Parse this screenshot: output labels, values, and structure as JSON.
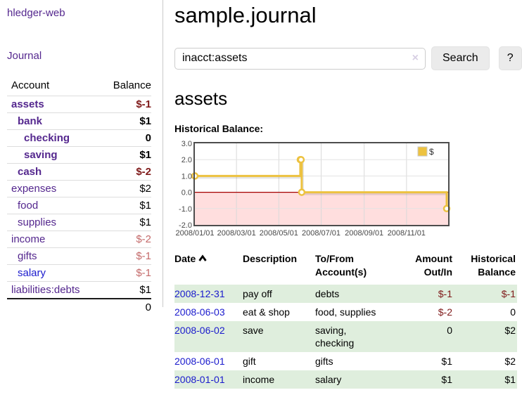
{
  "colors": {
    "accent_purple": "#54278e",
    "link_blue": "#1a1acd",
    "negative_dark": "#7f1a1a",
    "negative_soft": "#c46a6a",
    "row_stripe_green": "#dfeedd",
    "chart_line": "#edc240",
    "chart_negative_region": "#ffdede",
    "chart_zero_line": "#a40000"
  },
  "sidebar": {
    "app_title": "hledger-web",
    "journal_label": "Journal",
    "table": {
      "account_header": "Account",
      "balance_header": "Balance",
      "accounts": [
        {
          "name": "assets",
          "level": 0,
          "bold": true,
          "name_color": "purple",
          "balance": "$-1",
          "balance_color": "dark-red"
        },
        {
          "name": "bank",
          "level": 1,
          "bold": true,
          "name_color": "purple",
          "balance": "$1",
          "balance_color": ""
        },
        {
          "name": "checking",
          "level": 2,
          "bold": true,
          "name_color": "purple",
          "balance": "0",
          "balance_color": ""
        },
        {
          "name": "saving",
          "level": 2,
          "bold": true,
          "name_color": "purple",
          "balance": "$1",
          "balance_color": ""
        },
        {
          "name": "cash",
          "level": 1,
          "bold": true,
          "name_color": "purple",
          "balance": "$-2",
          "balance_color": "dark-red"
        },
        {
          "name": "expenses",
          "level": 0,
          "bold": false,
          "name_color": "purple",
          "balance": "$2",
          "balance_color": ""
        },
        {
          "name": "food",
          "level": 1,
          "bold": false,
          "name_color": "purple",
          "balance": "$1",
          "balance_color": ""
        },
        {
          "name": "supplies",
          "level": 1,
          "bold": false,
          "name_color": "purple",
          "balance": "$1",
          "balance_color": ""
        },
        {
          "name": "income",
          "level": 0,
          "bold": false,
          "name_color": "purple",
          "balance": "$-2",
          "balance_color": "soft-red"
        },
        {
          "name": "gifts",
          "level": 1,
          "bold": false,
          "name_color": "purple",
          "balance": "$-1",
          "balance_color": "soft-red"
        },
        {
          "name": "salary",
          "level": 1,
          "bold": false,
          "name_color": "blue",
          "balance": "$-1",
          "balance_color": "soft-red"
        },
        {
          "name": "liabilities:debts",
          "level": 0,
          "bold": false,
          "name_color": "purple",
          "balance": "$1",
          "balance_color": ""
        }
      ],
      "total": "0"
    }
  },
  "header": {
    "title": "sample.journal"
  },
  "search": {
    "value": "inacct:assets",
    "clear_icon": "×",
    "button_label": "Search",
    "help_label": "?"
  },
  "account_page": {
    "heading": "assets",
    "chart_label": "Historical Balance:"
  },
  "chart_data": {
    "type": "line",
    "step": true,
    "title": "Historical Balance",
    "x_start": "2008-01-01",
    "x_total_days": 365,
    "xticks": [
      "2008/01/01",
      "2008/03/01",
      "2008/05/01",
      "2008/07/01",
      "2008/09/01",
      "2008/11/01"
    ],
    "yticks": [
      3.0,
      2.0,
      1.0,
      0.0,
      -1.0,
      -2.0
    ],
    "ylim": [
      -2,
      3
    ],
    "series": [
      {
        "name": "$",
        "color": "#edc240",
        "points": [
          [
            "2008-01-01",
            1
          ],
          [
            "2008-06-01",
            2
          ],
          [
            "2008-06-02",
            2
          ],
          [
            "2008-06-03",
            0
          ],
          [
            "2008-12-31",
            -1
          ]
        ]
      }
    ],
    "legend_position": "top-right",
    "grid": true,
    "negative_region_color": "#ffdede",
    "zero_line_color": "#a40000"
  },
  "register": {
    "headers": {
      "date": "Date",
      "description": "Description",
      "accounts": "To/From Account(s)",
      "amount": "Amount Out/In",
      "balance": "Historical Balance"
    },
    "sort": {
      "column": "date",
      "direction": "ascending"
    },
    "rows": [
      {
        "date": "2008-12-31",
        "description": "pay off",
        "accounts": "debts",
        "amount": "$-1",
        "amount_negative": true,
        "balance": "$-1",
        "balance_negative": true
      },
      {
        "date": "2008-06-03",
        "description": "eat & shop",
        "accounts": "food, supplies",
        "amount": "$-2",
        "amount_negative": true,
        "balance": "0",
        "balance_negative": false
      },
      {
        "date": "2008-06-02",
        "description": "save",
        "accounts": "saving, checking",
        "accounts_wrap": true,
        "amount": "0",
        "amount_negative": false,
        "balance": "$2",
        "balance_negative": false
      },
      {
        "date": "2008-06-01",
        "description": "gift",
        "accounts": "gifts",
        "amount": "$1",
        "amount_negative": false,
        "balance": "$2",
        "balance_negative": false
      },
      {
        "date": "2008-01-01",
        "description": "income",
        "accounts": "salary",
        "amount": "$1",
        "amount_negative": false,
        "balance": "$1",
        "balance_negative": false
      }
    ]
  }
}
